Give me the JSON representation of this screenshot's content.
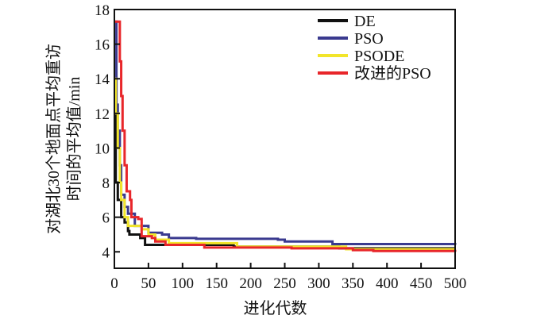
{
  "chart_data": {
    "type": "line",
    "title": "",
    "xlabel": "进化代数",
    "ylabel_lines": [
      "对湖北30个地面点平均重访",
      "时间的平均值/min"
    ],
    "xlim": [
      0,
      500
    ],
    "ylim": [
      3.05,
      18
    ],
    "xticks": [
      0,
      50,
      100,
      150,
      200,
      250,
      300,
      350,
      400,
      450,
      500
    ],
    "yticks": [
      4,
      6,
      8,
      10,
      12,
      14,
      16,
      18
    ],
    "grid": false,
    "legend_position": "top-right",
    "series": [
      {
        "name": "DE",
        "color": "#111111",
        "x": [
          0,
          2,
          5,
          10,
          15,
          20,
          22,
          38,
          45,
          170,
          175,
          330,
          500
        ],
        "y": [
          12,
          8,
          7,
          6,
          5.7,
          5.2,
          5.0,
          4.8,
          4.4,
          4.4,
          4.3,
          4.2,
          4.2
        ]
      },
      {
        "name": "PSO",
        "color": "#3a3a8f",
        "x": [
          0,
          3,
          5,
          8,
          10,
          15,
          20,
          30,
          50,
          70,
          80,
          120,
          240,
          250,
          300,
          320,
          500
        ],
        "y": [
          17.3,
          12.5,
          11,
          9,
          7.3,
          6.6,
          6.2,
          5.5,
          5.1,
          5.0,
          4.8,
          4.75,
          4.7,
          4.6,
          4.6,
          4.45,
          4.4
        ]
      },
      {
        "name": "PSODE",
        "color": "#f2e52a",
        "x": [
          0,
          2,
          5,
          8,
          10,
          15,
          20,
          40,
          50,
          60,
          80,
          170,
          180,
          320,
          340,
          500
        ],
        "y": [
          14,
          12,
          10,
          8,
          7,
          6,
          5.5,
          5.3,
          5.0,
          4.7,
          4.5,
          4.5,
          4.3,
          4.3,
          4.15,
          4.15
        ]
      },
      {
        "name": "改进的PSO",
        "color": "#e8262a",
        "x": [
          0,
          7,
          8,
          10,
          12,
          15,
          18,
          23,
          25,
          35,
          40,
          55,
          60,
          75,
          130,
          132,
          250,
          260,
          350,
          380,
          500
        ],
        "y": [
          17.3,
          17.3,
          15,
          13,
          11,
          9,
          7.5,
          7,
          6,
          5.9,
          4.9,
          4.8,
          4.6,
          4.4,
          4.4,
          4.25,
          4.25,
          4.2,
          4.1,
          4.05,
          4.0
        ]
      }
    ]
  }
}
